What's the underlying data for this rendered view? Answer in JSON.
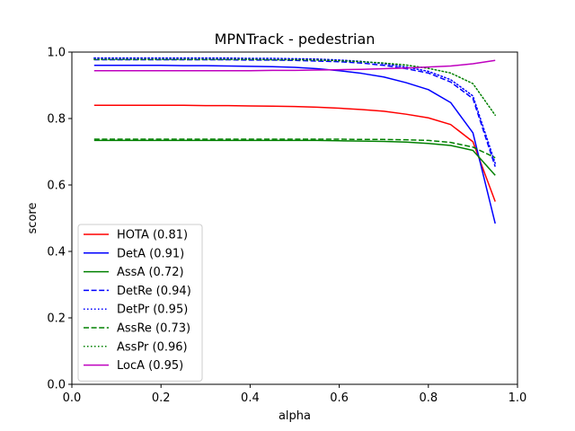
{
  "chart_data": {
    "type": "line",
    "title": "MPNTrack - pedestrian",
    "xlabel": "alpha",
    "ylabel": "score",
    "xlim": [
      0.0,
      1.0
    ],
    "ylim": [
      0.0,
      1.0
    ],
    "xticks": [
      "0.0",
      "0.2",
      "0.4",
      "0.6",
      "0.8",
      "1.0"
    ],
    "yticks": [
      "0.0",
      "0.2",
      "0.4",
      "0.6",
      "0.8",
      "1.0"
    ],
    "grid": false,
    "legend_position": "lower-left",
    "x": [
      0.05,
      0.1,
      0.15,
      0.2,
      0.25,
      0.3,
      0.35,
      0.4,
      0.45,
      0.5,
      0.55,
      0.6,
      0.65,
      0.7,
      0.75,
      0.8,
      0.85,
      0.9,
      0.95
    ],
    "series": [
      {
        "name": "HOTA (0.81)",
        "color": "#ff0000",
        "dash": "solid",
        "values": [
          0.84,
          0.84,
          0.84,
          0.84,
          0.84,
          0.839,
          0.839,
          0.838,
          0.837,
          0.836,
          0.834,
          0.831,
          0.827,
          0.822,
          0.813,
          0.802,
          0.782,
          0.73,
          0.55
        ]
      },
      {
        "name": "DetA (0.91)",
        "color": "#0000ff",
        "dash": "solid",
        "values": [
          0.96,
          0.96,
          0.96,
          0.96,
          0.959,
          0.959,
          0.958,
          0.957,
          0.956,
          0.954,
          0.95,
          0.944,
          0.936,
          0.925,
          0.908,
          0.887,
          0.848,
          0.757,
          0.484
        ]
      },
      {
        "name": "AssA (0.72)",
        "color": "#008000",
        "dash": "solid",
        "values": [
          0.734,
          0.734,
          0.734,
          0.734,
          0.734,
          0.734,
          0.734,
          0.734,
          0.734,
          0.734,
          0.734,
          0.733,
          0.732,
          0.731,
          0.729,
          0.725,
          0.719,
          0.704,
          0.629
        ]
      },
      {
        "name": "DetRe (0.94)",
        "color": "#0000ff",
        "dash": "dashed",
        "values": [
          0.977,
          0.977,
          0.977,
          0.977,
          0.977,
          0.977,
          0.977,
          0.976,
          0.976,
          0.975,
          0.973,
          0.971,
          0.967,
          0.96,
          0.95,
          0.937,
          0.91,
          0.86,
          0.655
        ]
      },
      {
        "name": "DetPr (0.95)",
        "color": "#0000ff",
        "dash": "dotted",
        "values": [
          0.982,
          0.982,
          0.982,
          0.982,
          0.982,
          0.982,
          0.982,
          0.981,
          0.981,
          0.98,
          0.979,
          0.976,
          0.972,
          0.965,
          0.955,
          0.942,
          0.917,
          0.868,
          0.665
        ]
      },
      {
        "name": "AssRe (0.73)",
        "color": "#008000",
        "dash": "dashed",
        "values": [
          0.738,
          0.738,
          0.738,
          0.738,
          0.738,
          0.738,
          0.738,
          0.738,
          0.738,
          0.738,
          0.738,
          0.738,
          0.737,
          0.737,
          0.736,
          0.734,
          0.728,
          0.714,
          0.682
        ]
      },
      {
        "name": "AssPr (0.96)",
        "color": "#008000",
        "dash": "dotted",
        "values": [
          0.978,
          0.978,
          0.978,
          0.978,
          0.978,
          0.978,
          0.978,
          0.978,
          0.977,
          0.977,
          0.976,
          0.974,
          0.971,
          0.967,
          0.961,
          0.951,
          0.937,
          0.905,
          0.81
        ]
      },
      {
        "name": "LocA (0.95)",
        "color": "#bf00bf",
        "dash": "solid",
        "values": [
          0.944,
          0.944,
          0.944,
          0.944,
          0.944,
          0.944,
          0.944,
          0.944,
          0.945,
          0.945,
          0.946,
          0.947,
          0.948,
          0.95,
          0.952,
          0.955,
          0.958,
          0.965,
          0.975
        ]
      }
    ]
  }
}
